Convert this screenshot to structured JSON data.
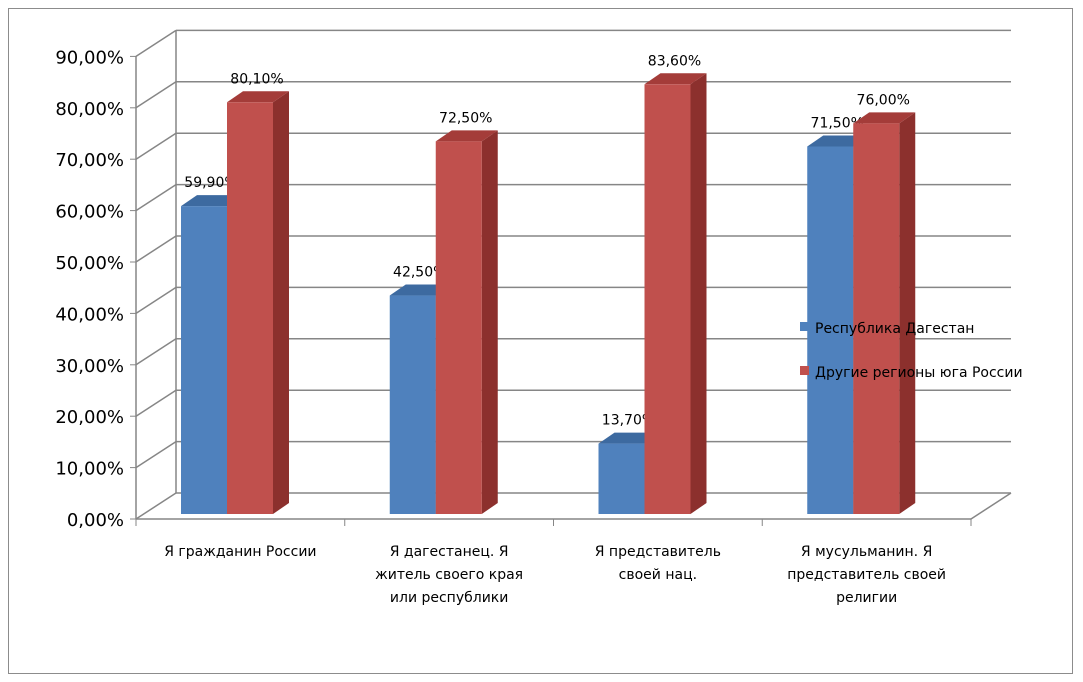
{
  "chart_data": {
    "type": "bar",
    "subtype": "3d-clustered-column",
    "categories": [
      [
        "Я гражданин России"
      ],
      [
        "Я дагестанец. Я",
        "житель своего края",
        "или республики"
      ],
      [
        "Я представитель",
        "своей нац."
      ],
      [
        "Я мусульманин. Я",
        "представитель своей",
        "религии"
      ]
    ],
    "series": [
      {
        "name": "Республика Дагестан",
        "values": [
          59.9,
          42.5,
          13.7,
          71.5
        ],
        "labels": [
          "59,90%",
          "42,50%",
          "13,70%",
          "71,50%"
        ],
        "color": "#4f81bd",
        "side_color": "#2f5d8f",
        "top_color": "#3d6aa0"
      },
      {
        "name": "Другие регионы юга России",
        "values": [
          80.1,
          72.5,
          83.6,
          76.0
        ],
        "labels": [
          "80,10%",
          "72,50%",
          "83,60%",
          "76,00%"
        ],
        "color": "#c0504d",
        "side_color": "#8c302d",
        "top_color": "#a43c39"
      }
    ],
    "y_ticks": [
      "0,00%",
      "10,00%",
      "20,00%",
      "30,00%",
      "40,00%",
      "50,00%",
      "60,00%",
      "70,00%",
      "80,00%",
      "90,00%"
    ],
    "ylim": [
      0,
      90
    ],
    "grid": true,
    "legend_position": "right"
  }
}
